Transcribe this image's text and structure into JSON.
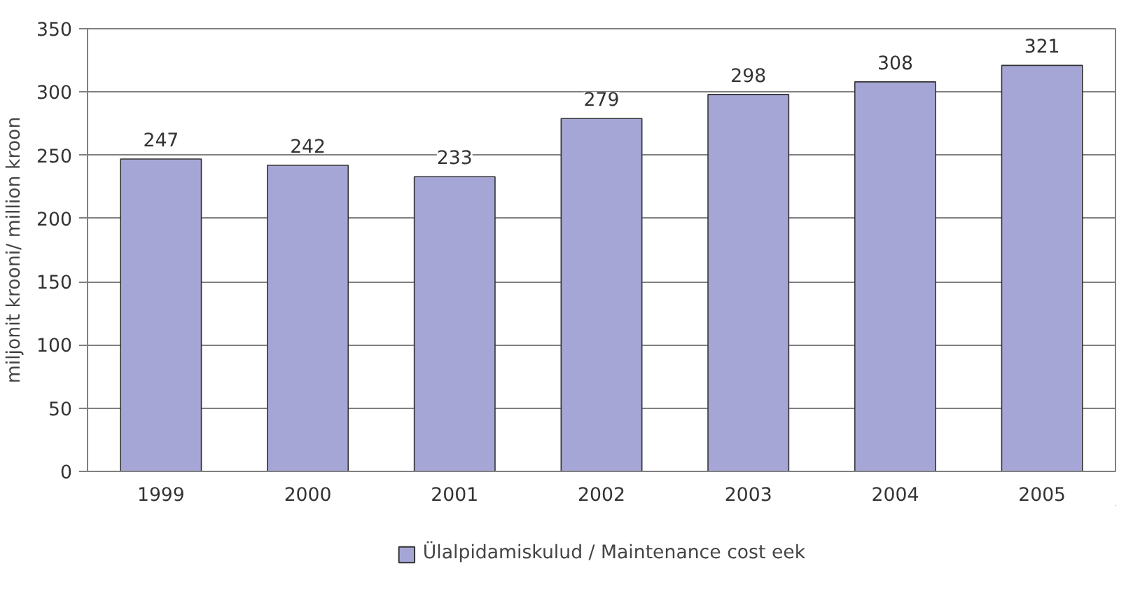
{
  "chart_data": {
    "type": "bar",
    "ylabel": "miljonit krooni/ million kroon",
    "categories": [
      "1999",
      "2000",
      "2001",
      "2002",
      "2003",
      "2004",
      "2005"
    ],
    "series": [
      {
        "name": "Ülalpidamiskulud / Maintenance cost eek",
        "color": "#a6a6d6",
        "values": [
          247,
          242,
          233,
          279,
          298,
          308,
          321
        ]
      }
    ],
    "ylim": [
      0,
      350
    ],
    "yticks": [
      0,
      50,
      100,
      150,
      200,
      250,
      300,
      350
    ],
    "grid": "y",
    "legend": "bottom",
    "data_labels": true
  }
}
